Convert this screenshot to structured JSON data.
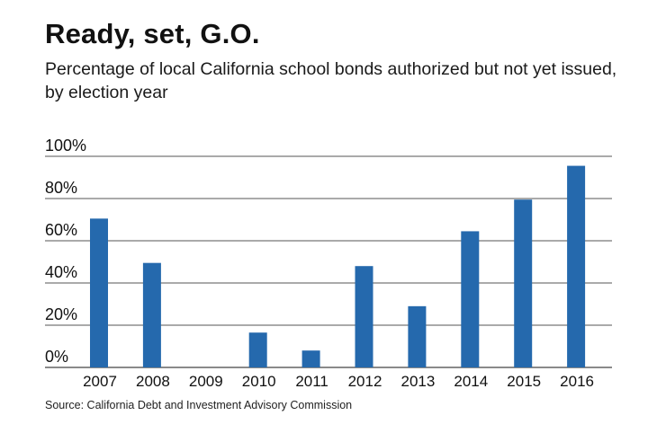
{
  "chart_data": {
    "type": "bar",
    "title": "Ready, set, G.O.",
    "subtitle": "Percentage of local California school bonds authorized but not yet issued, by election year",
    "categories": [
      "2007",
      "2008",
      "2009",
      "2010",
      "2011",
      "2012",
      "2013",
      "2014",
      "2015",
      "2016"
    ],
    "values": [
      70.5,
      49.5,
      0,
      16.5,
      8,
      48,
      29,
      64.5,
      79.5,
      95.5
    ],
    "yticks": [
      "0%",
      "20%",
      "40%",
      "60%",
      "80%",
      "100%"
    ],
    "ylim": [
      0,
      100
    ],
    "xlabel": "",
    "ylabel": "",
    "bar_color": "#2569ad",
    "grid": true
  },
  "source": "Source: California Debt and Investment Advisory Commission"
}
